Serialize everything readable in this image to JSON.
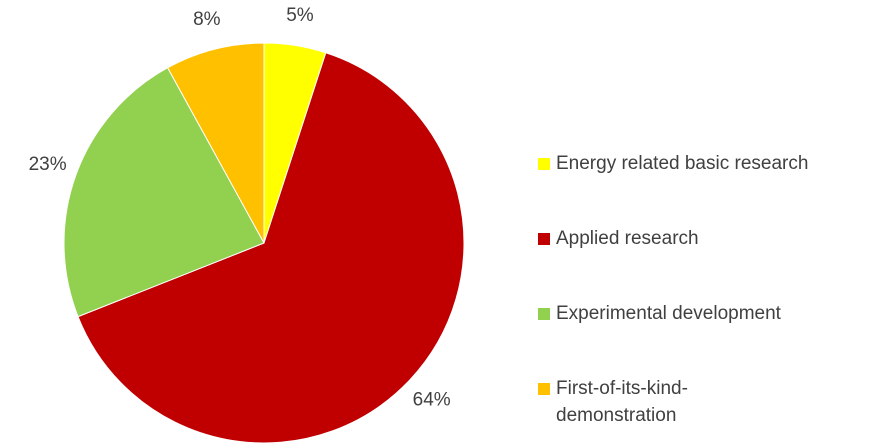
{
  "chart_data": {
    "type": "pie",
    "categories": [
      "Energy related basic research",
      "Applied research",
      "Experimental development",
      "First-of-its-kind-demonstration"
    ],
    "values": [
      5,
      64,
      23,
      8
    ],
    "value_labels": [
      "5%",
      "64%",
      "23%",
      "8%"
    ],
    "colors": [
      "#ffff00",
      "#c00000",
      "#92d050",
      "#ffc000"
    ],
    "legend": "right"
  }
}
